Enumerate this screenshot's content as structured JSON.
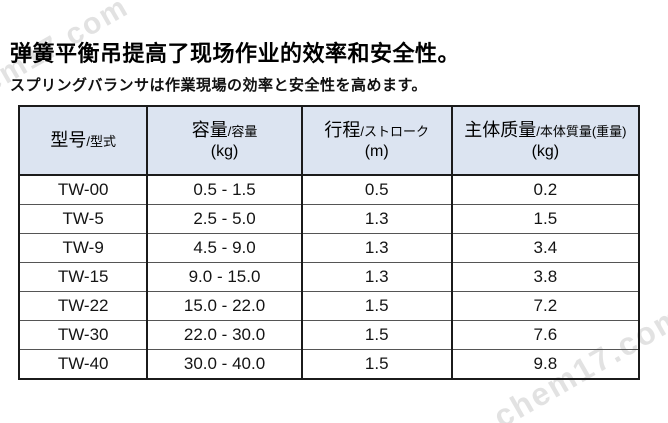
{
  "watermark": {
    "text": "chem17.com",
    "color": "#cbcbcb"
  },
  "heading": {
    "zh": "弹簧平衡吊提高了现场作业的效率和安全性。",
    "ja": "スプリングバランサは作業現場の効率と安全性を高めます。"
  },
  "table": {
    "header_bg": "#dce4f1",
    "columns": [
      {
        "main": "型号",
        "sub": "/型式",
        "unit": ""
      },
      {
        "main": "容量",
        "sub": "/容量",
        "unit": "(kg)"
      },
      {
        "main": "行程",
        "sub": "/ストローク",
        "unit": "(m)"
      },
      {
        "main": "主体质量",
        "sub": "/本体質量(重量)",
        "unit": "(kg)"
      }
    ],
    "rows": [
      {
        "model": "TW-00",
        "capacity": "0.5 - 1.5",
        "stroke": "0.5",
        "weight": "0.2"
      },
      {
        "model": "TW-5",
        "capacity": "2.5 - 5.0",
        "stroke": "1.3",
        "weight": "1.5"
      },
      {
        "model": "TW-9",
        "capacity": "4.5 - 9.0",
        "stroke": "1.3",
        "weight": "3.4"
      },
      {
        "model": "TW-15",
        "capacity": "9.0 - 15.0",
        "stroke": "1.3",
        "weight": "3.8"
      },
      {
        "model": "TW-22",
        "capacity": "15.0 - 22.0",
        "stroke": "1.5",
        "weight": "7.2"
      },
      {
        "model": "TW-30",
        "capacity": "22.0 - 30.0",
        "stroke": "1.5",
        "weight": "7.6"
      },
      {
        "model": "TW-40",
        "capacity": "30.0 - 40.0",
        "stroke": "1.5",
        "weight": "9.8"
      }
    ]
  }
}
